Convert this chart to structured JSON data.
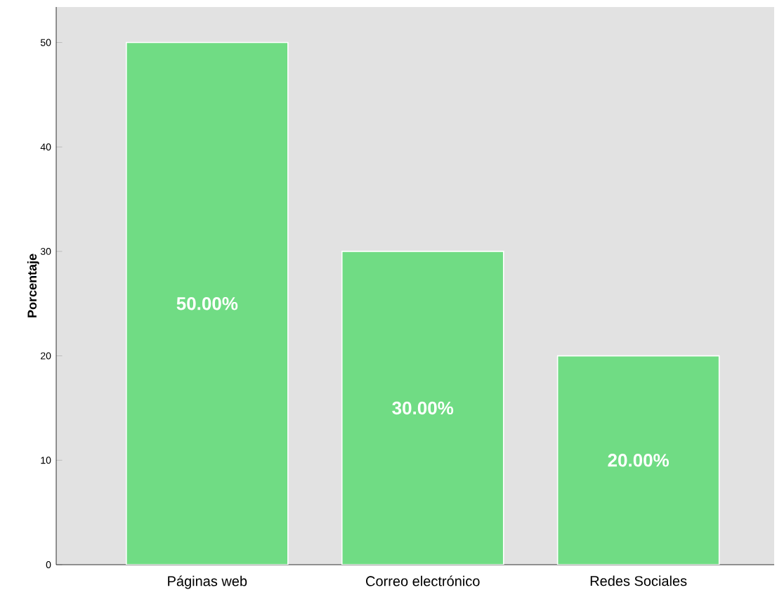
{
  "chart_data": {
    "type": "bar",
    "ylabel": "Porcentaje",
    "categories": [
      "Páginas web",
      "Correo electrónico",
      "Redes Sociales"
    ],
    "values": [
      50,
      30,
      20
    ],
    "value_labels": [
      "50.00%",
      "30.00%",
      "20.00%"
    ],
    "color": "#70dc84",
    "ylim": [
      0,
      53.4
    ],
    "yticks": [
      0,
      10,
      20,
      30,
      40,
      50
    ],
    "grid": false
  }
}
